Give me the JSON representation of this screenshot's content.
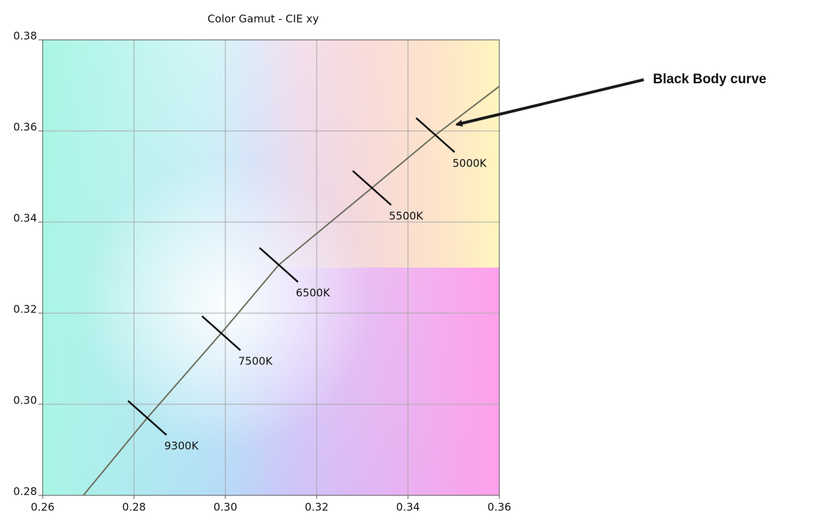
{
  "chart_data": {
    "type": "line",
    "title": "Color Gamut - CIE xy",
    "x": [
      0.2689,
      0.2829,
      0.2991,
      0.3117,
      0.3321,
      0.346,
      0.36
    ],
    "values": [
      0.28,
      0.297,
      0.3156,
      0.3306,
      0.3475,
      0.3591,
      0.3698
    ],
    "color": "#6e6e5e",
    "markers": [
      {
        "label": "9300K",
        "x": 0.2829,
        "y": 0.297
      },
      {
        "label": "7500K",
        "x": 0.2991,
        "y": 0.3156
      },
      {
        "label": "6500K",
        "x": 0.3117,
        "y": 0.3306
      },
      {
        "label": "5500K",
        "x": 0.3321,
        "y": 0.3475
      },
      {
        "label": "5000K",
        "x": 0.346,
        "y": 0.3591
      }
    ],
    "annotation": "Black Body curve",
    "xlim": [
      0.26,
      0.36
    ],
    "ylim": [
      0.28,
      0.38
    ],
    "xticks": [
      0.26,
      0.28,
      {
        "value": 0.3,
        "label": "0.30"
      },
      0.32,
      0.34,
      0.36
    ],
    "yticks": [
      0.28,
      {
        "value": 0.3,
        "label": "0.30"
      },
      0.32,
      0.34,
      0.36,
      0.38
    ],
    "grid": true
  }
}
